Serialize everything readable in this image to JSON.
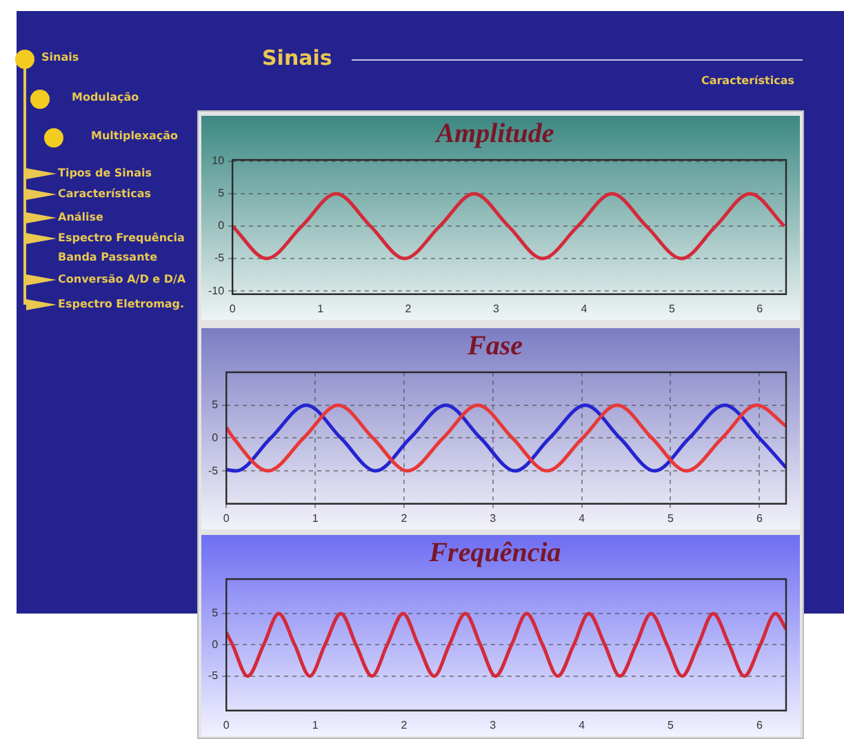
{
  "chart_data": [
    {
      "type": "other",
      "title": "Sinais",
      "subtitle": "Características",
      "annotations": [
        "Sinais",
        "Modulação",
        "Multiplexação",
        "Tipos de Sinais",
        "Características",
        "Análise",
        "Espectro Frequência Banda Passante",
        "Conversão A/D e D/A",
        "Espectro Eletromag."
      ]
    },
    {
      "type": "line",
      "title": "Amplitude",
      "xlim": [
        0,
        6.3
      ],
      "xticks": [
        0,
        1,
        2,
        3,
        4,
        5,
        6
      ],
      "ylim": [
        -10.5,
        10.2
      ],
      "yticks": [
        -10,
        -5,
        0,
        5,
        10
      ],
      "grid": "y",
      "marker": "none",
      "series": [
        {
          "color": "#d42a3a",
          "x": [
            0,
            0.39,
            0.79,
            1.18,
            1.57,
            1.96,
            2.36,
            2.75,
            3.14,
            3.53,
            3.93,
            4.32,
            4.71,
            5.11,
            5.5,
            5.89,
            6.28
          ],
          "values": [
            0,
            -5,
            0,
            5,
            0,
            -5,
            0,
            5,
            0,
            -5,
            0,
            5,
            0,
            -5,
            0,
            5,
            0
          ]
        }
      ]
    },
    {
      "type": "line",
      "title": "Fase",
      "xlim": [
        0,
        6.3
      ],
      "xticks": [
        0,
        1,
        2,
        3,
        4,
        5,
        6
      ],
      "ylim": [
        -10,
        10
      ],
      "yticks": [
        -5,
        0,
        5
      ],
      "grid": true,
      "marker": "none",
      "series": [
        {
          "color": "#e83838",
          "x": [
            0,
            0.08,
            0.47,
            0.87,
            1.26,
            1.65,
            2.04,
            2.44,
            2.83,
            3.22,
            3.61,
            4.01,
            4.4,
            4.79,
            5.18,
            5.58,
            5.97,
            6.3
          ],
          "values": [
            1.6,
            0,
            -5,
            0,
            5,
            0,
            -5,
            0,
            5,
            0,
            -5,
            0,
            5,
            0,
            -5,
            0,
            5,
            1.8
          ]
        },
        {
          "color": "#2424d0",
          "x": [
            0,
            0.11,
            0.5,
            0.9,
            1.29,
            1.68,
            2.07,
            2.47,
            2.86,
            3.25,
            3.64,
            4.04,
            4.43,
            4.82,
            5.21,
            5.61,
            6.0,
            6.3
          ],
          "values": [
            -4.8,
            -5,
            0,
            5,
            0,
            -5,
            0,
            5,
            0,
            -5,
            0,
            5,
            0,
            -5,
            0,
            5,
            0,
            -4.5
          ]
        }
      ]
    },
    {
      "type": "line",
      "title": "Frequência",
      "xlim": [
        0,
        6.3
      ],
      "xticks": [
        0,
        1,
        2,
        3,
        4,
        5,
        6
      ],
      "ylim": [
        -10.5,
        10.5
      ],
      "yticks": [
        -5,
        0,
        5
      ],
      "grid": "y",
      "marker": "none",
      "series": [
        {
          "color": "#d42a3a",
          "x": [
            0,
            0.07,
            0.24,
            0.42,
            0.59,
            0.77,
            0.94,
            1.11,
            1.29,
            1.46,
            1.64,
            1.81,
            1.99,
            2.16,
            2.34,
            2.51,
            2.69,
            2.86,
            3.03,
            3.21,
            3.38,
            3.56,
            3.73,
            3.91,
            4.08,
            4.26,
            4.43,
            4.61,
            4.78,
            4.96,
            5.13,
            5.31,
            5.48,
            5.66,
            5.83,
            6.01,
            6.18,
            6.3
          ],
          "values": [
            2,
            0,
            -5,
            0,
            5,
            0,
            -5,
            0,
            5,
            0,
            -5,
            0,
            5,
            0,
            -5,
            0,
            5,
            0,
            -5,
            0,
            5,
            0,
            -5,
            0,
            5,
            0,
            -5,
            0,
            5,
            0,
            -5,
            0,
            5,
            0,
            -5,
            0,
            5,
            2.5
          ]
        }
      ]
    }
  ]
}
